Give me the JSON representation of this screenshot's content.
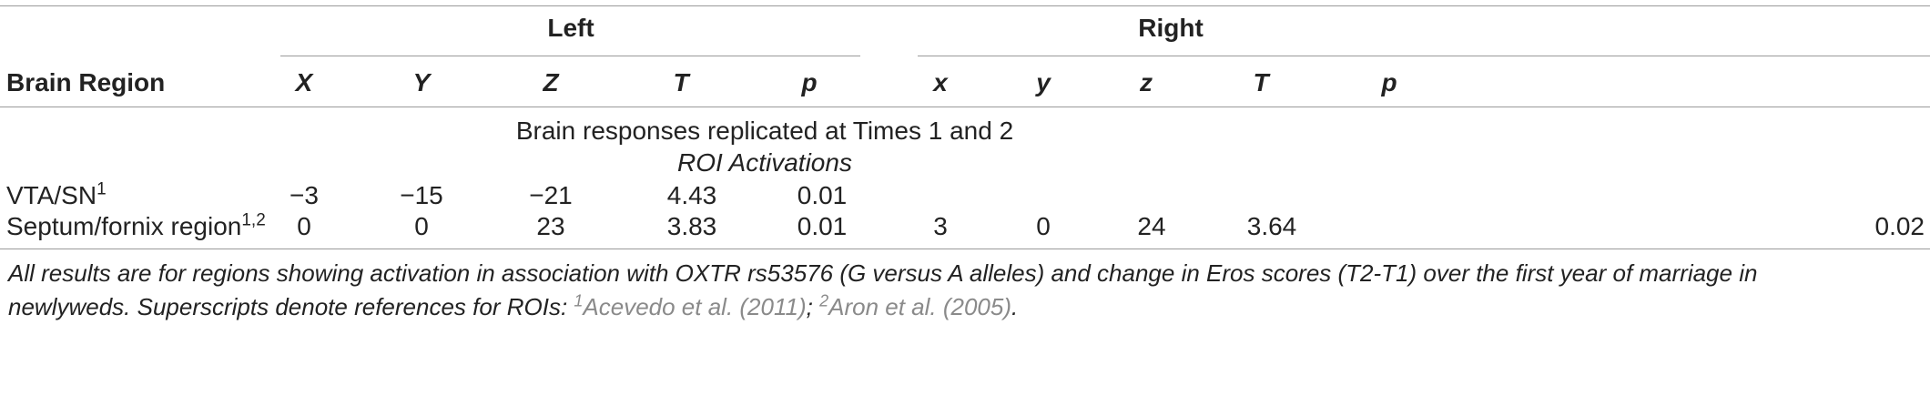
{
  "table": {
    "group_headers": {
      "left": "Left",
      "right": "Right"
    },
    "column_headers": {
      "region": "Brain Region",
      "left": [
        "X",
        "Y",
        "Z",
        "T",
        "p"
      ],
      "right": [
        "x",
        "y",
        "z",
        "T",
        "p"
      ]
    },
    "section_title": "Brain responses replicated at Times 1 and 2",
    "subsection_title": "ROI Activations",
    "rows": [
      {
        "region": "VTA/SN",
        "region_sup": "1",
        "left": [
          "−3",
          "−15",
          "−21",
          "4.43",
          "0.01"
        ],
        "right": [
          "",
          "",
          "",
          "",
          ""
        ]
      },
      {
        "region": "Septum/fornix region",
        "region_sup": "1,2",
        "left": [
          "0",
          "0",
          "23",
          "3.83",
          "0.01"
        ],
        "right": [
          "3",
          "0",
          "24",
          "3.64",
          "0.02"
        ]
      }
    ]
  },
  "footnote": {
    "line1": "All results are for regions showing activation in association with OXTR rs53576 (G versus A alleles) and change in Eros scores (T2-T1) over the first year of marriage in",
    "line2_prefix": "newlyweds. Superscripts denote references for ROIs: ",
    "ref1_sup": "1",
    "ref1_text": "Acevedo et al. (2011)",
    "separator": "; ",
    "ref2_sup": "2",
    "ref2_text": "Aron et al. (2005)",
    "ending": "."
  }
}
